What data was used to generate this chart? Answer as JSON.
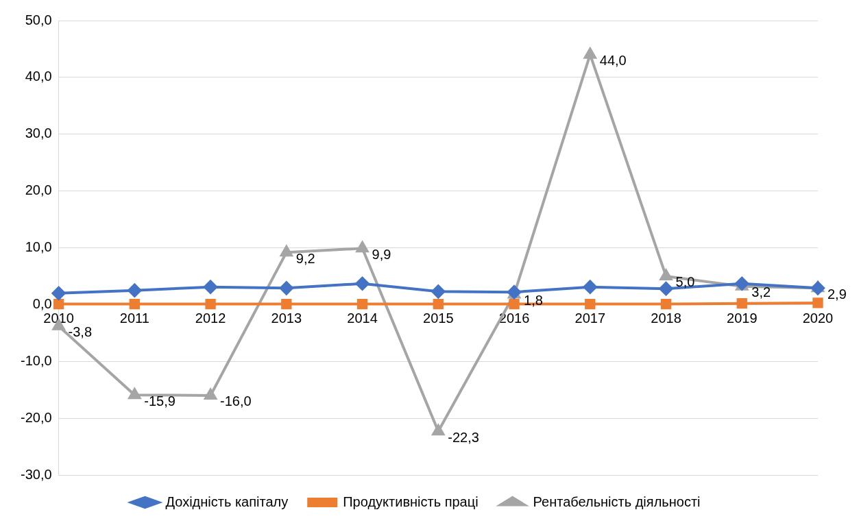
{
  "chart_data": {
    "type": "line",
    "categories": [
      "2010",
      "2011",
      "2012",
      "2013",
      "2014",
      "2015",
      "2016",
      "2017",
      "2018",
      "2019",
      "2020"
    ],
    "series": [
      {
        "name": "Дохідність капіталу",
        "color": "#4472c4",
        "marker": "diamond",
        "values": [
          2.0,
          2.5,
          3.1,
          2.9,
          3.7,
          2.3,
          2.2,
          3.1,
          2.8,
          3.7,
          2.9
        ]
      },
      {
        "name": "Продуктивність праці",
        "color": "#ed7d31",
        "marker": "square",
        "values": [
          0.1,
          0.1,
          0.1,
          0.1,
          0.1,
          0.1,
          0.1,
          0.1,
          0.1,
          0.2,
          0.3
        ]
      },
      {
        "name": "Рентабельність діяльності",
        "color": "#a5a5a5",
        "marker": "triangle",
        "values": [
          -3.8,
          -15.9,
          -16.0,
          9.2,
          9.9,
          -22.3,
          1.8,
          44.0,
          5.0,
          3.2,
          2.9
        ],
        "value_labels": [
          "-3,8",
          "-15,9",
          "-16,0",
          "9,2",
          "9,9",
          "-22,3",
          "1,8",
          "44,0",
          "5,0",
          "3,2",
          "2,9"
        ]
      }
    ],
    "ylim": [
      -30,
      50
    ],
    "yticks": [
      {
        "value": -30,
        "label": "-30,0"
      },
      {
        "value": -20,
        "label": "-20,0"
      },
      {
        "value": -10,
        "label": "-10,0"
      },
      {
        "value": 0,
        "label": "0,0"
      },
      {
        "value": 10,
        "label": "10,0"
      },
      {
        "value": 20,
        "label": "20,0"
      },
      {
        "value": 30,
        "label": "30,0"
      },
      {
        "value": 40,
        "label": "40,0"
      },
      {
        "value": 50,
        "label": "50,0"
      }
    ],
    "grid": "y",
    "legend": "bottom",
    "line_style": "solid"
  }
}
